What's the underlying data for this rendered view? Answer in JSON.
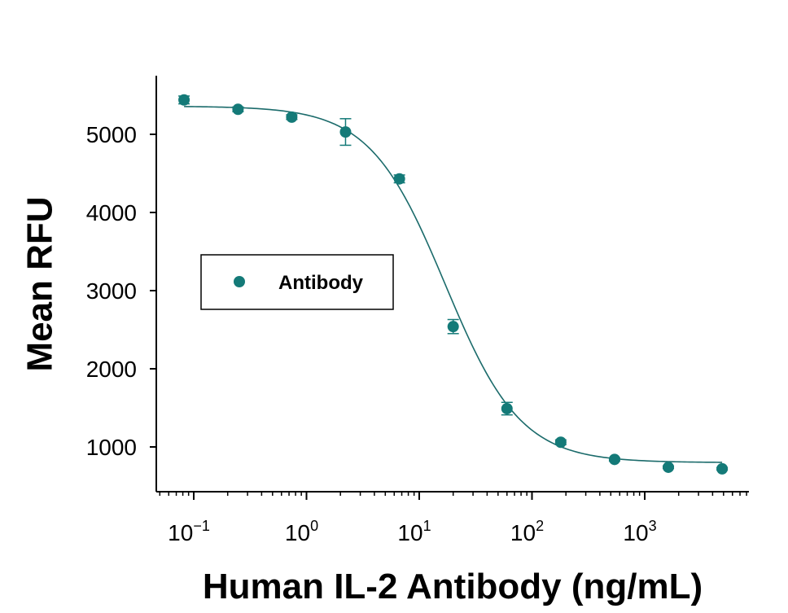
{
  "chart_data": {
    "type": "scatter",
    "xscale": "log",
    "xlabel": "Human IL-2 Antibody (ng/mL)",
    "ylabel": "Mean RFU",
    "xlim": [
      0.06,
      8000
    ],
    "ylim": [
      400,
      5800
    ],
    "yticks": [
      1000,
      2000,
      3000,
      4000,
      5000
    ],
    "xticks": [
      {
        "value": 0.1,
        "base": "10",
        "exp": "−1"
      },
      {
        "value": 1,
        "base": "10",
        "exp": "0"
      },
      {
        "value": 10,
        "base": "10",
        "exp": "1"
      },
      {
        "value": 100,
        "base": "10",
        "exp": "2"
      },
      {
        "value": 1000,
        "base": "10",
        "exp": "3"
      }
    ],
    "grid": false,
    "legend_position": "left-middle",
    "colors": {
      "series": "#147a78",
      "curve": "#1b6b6b",
      "axis": "#000000"
    },
    "series": [
      {
        "name": "Antibody",
        "points": [
          {
            "x": 0.082,
            "y": 5440,
            "err": 50
          },
          {
            "x": 0.247,
            "y": 5320,
            "err": 30
          },
          {
            "x": 0.74,
            "y": 5220,
            "err": 30
          },
          {
            "x": 2.22,
            "y": 5030,
            "err": 170
          },
          {
            "x": 6.67,
            "y": 4430,
            "err": 50
          },
          {
            "x": 20,
            "y": 2540,
            "err": 90
          },
          {
            "x": 60,
            "y": 1490,
            "err": 80
          },
          {
            "x": 180,
            "y": 1060,
            "err": 30
          },
          {
            "x": 540,
            "y": 840,
            "err": 20
          },
          {
            "x": 1620,
            "y": 740,
            "err": 15
          },
          {
            "x": 4860,
            "y": 720,
            "err": 15
          }
        ],
        "fit": {
          "model": "4PL",
          "top": 5360,
          "bottom": 800,
          "ec50": 17,
          "hill": 1.3
        }
      }
    ]
  }
}
